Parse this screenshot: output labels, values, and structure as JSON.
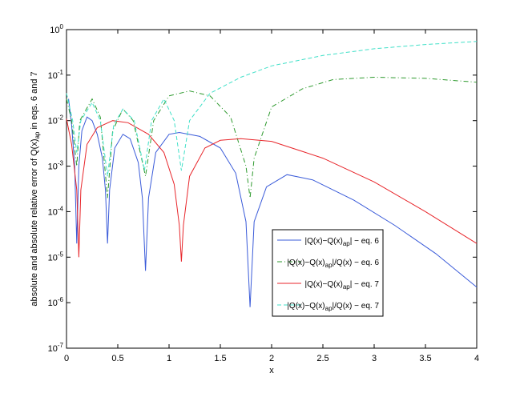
{
  "chart_data": {
    "type": "line",
    "ylabel": "absolute and absolute relative error of Q(x)_ap in eqs. 6 and 7",
    "xlabel": "x",
    "xlim": [
      0,
      4
    ],
    "xticks": [
      0,
      0.5,
      1,
      1.5,
      2,
      2.5,
      3,
      3.5,
      4
    ],
    "ylim": [
      1e-07,
      1
    ],
    "log_y": true,
    "yticks": [
      {
        "value": 1e-07,
        "label": "10^-7"
      },
      {
        "value": 1e-06,
        "label": "10^-6"
      },
      {
        "value": 1e-05,
        "label": "10^-5"
      },
      {
        "value": 0.0001,
        "label": "10^-4"
      },
      {
        "value": 0.001,
        "label": "10^-3"
      },
      {
        "value": 0.01,
        "label": "10^-2"
      },
      {
        "value": 0.1,
        "label": "10^-1"
      },
      {
        "value": 1,
        "label": "10^0"
      }
    ],
    "grid": false,
    "legend": "lower right",
    "series": [
      {
        "name": "|Q(x)−Q(x)_ap| − eq. 6",
        "color": "#3a5bd9",
        "dash": "solid",
        "x": [
          0.02,
          0.05,
          0.08,
          0.1,
          0.12,
          0.15,
          0.2,
          0.25,
          0.3,
          0.35,
          0.38,
          0.4,
          0.42,
          0.47,
          0.55,
          0.62,
          0.7,
          0.74,
          0.77,
          0.8,
          0.87,
          1.0,
          1.1,
          1.3,
          1.5,
          1.65,
          1.75,
          1.79,
          1.83,
          1.95,
          2.15,
          2.4,
          2.8,
          3.2,
          3.6,
          4
        ],
        "values": [
          0.03,
          0.008,
          0.001,
          2e-05,
          0.001,
          0.006,
          0.012,
          0.01,
          0.005,
          0.0015,
          0.0003,
          2e-05,
          0.0003,
          0.0025,
          0.005,
          0.004,
          0.0012,
          0.0002,
          5e-06,
          0.0002,
          0.002,
          0.005,
          0.0055,
          0.0045,
          0.0025,
          0.0007,
          6e-05,
          8e-07,
          6e-05,
          0.00035,
          0.00065,
          0.0005,
          0.00018,
          5e-05,
          1.2e-05,
          2.2e-06
        ]
      },
      {
        "name": "|Q(x)−Q(x)_ap|/Q(x) − eq. 6",
        "color": "#2e9a2e",
        "dash": "dashdot",
        "x": [
          0,
          0.05,
          0.1,
          0.13,
          0.25,
          0.33,
          0.4,
          0.45,
          0.55,
          0.65,
          0.77,
          0.85,
          1.0,
          1.2,
          1.4,
          1.6,
          1.75,
          1.79,
          1.83,
          2.0,
          2.3,
          2.6,
          3.0,
          3.5,
          4
        ],
        "values": [
          0.03,
          0.01,
          0.001,
          0.01,
          0.03,
          0.012,
          0.0002,
          0.006,
          0.018,
          0.01,
          0.0006,
          0.01,
          0.035,
          0.045,
          0.035,
          0.012,
          0.001,
          0.0002,
          0.0015,
          0.02,
          0.05,
          0.08,
          0.09,
          0.085,
          0.07
        ]
      },
      {
        "name": "|Q(x)−Q(x)_ap| − eq. 7",
        "color": "#e8262b",
        "dash": "solid",
        "x": [
          0,
          0.05,
          0.1,
          0.12,
          0.14,
          0.2,
          0.3,
          0.45,
          0.6,
          0.8,
          0.95,
          1.05,
          1.1,
          1.12,
          1.14,
          1.2,
          1.35,
          1.5,
          1.7,
          2.0,
          2.5,
          3.0,
          3.5,
          4
        ],
        "values": [
          0.011,
          0.003,
          0.0003,
          1e-05,
          0.0003,
          0.003,
          0.007,
          0.01,
          0.009,
          0.005,
          0.002,
          0.0004,
          5e-05,
          8e-06,
          5e-05,
          0.0006,
          0.0025,
          0.0037,
          0.004,
          0.0035,
          0.0015,
          0.00045,
          0.0001,
          2e-05
        ]
      },
      {
        "name": "|Q(x)−Q(x)_ap|/Q(x) − eq. 7",
        "color": "#40e0c8",
        "dash": "dashed",
        "x": [
          0,
          0.06,
          0.1,
          0.14,
          0.25,
          0.33,
          0.4,
          0.46,
          0.55,
          0.66,
          0.76,
          0.83,
          0.95,
          1.05,
          1.12,
          1.2,
          1.4,
          1.7,
          2.0,
          2.5,
          3.0,
          3.5,
          4
        ],
        "values": [
          0.04,
          0.01,
          0.002,
          0.01,
          0.025,
          0.01,
          0.0006,
          0.008,
          0.018,
          0.01,
          0.0008,
          0.01,
          0.03,
          0.01,
          0.0008,
          0.01,
          0.04,
          0.09,
          0.16,
          0.27,
          0.38,
          0.47,
          0.55
        ]
      }
    ]
  }
}
